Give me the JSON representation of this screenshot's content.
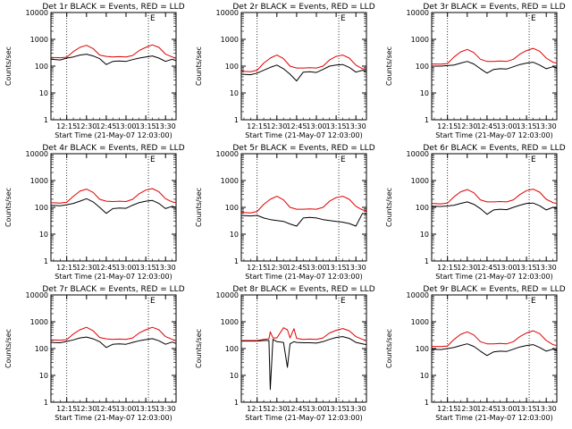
{
  "colors": {
    "events": "#000000",
    "lld": "#e00000",
    "background": "#ffffff",
    "axis": "#000000"
  },
  "chart_data": [
    {
      "type": "line",
      "title": "Det 1r BLACK = Events, RED = LLD",
      "marker": "E",
      "xlabel": "Start Time (21-May-07 12:03:00)",
      "ylabel": "Counts/sec",
      "yscale": "log",
      "xlim": [
        "12:03",
        "13:38"
      ],
      "ylim": [
        1,
        10000
      ],
      "x_ticks": [
        "12:15",
        "12:30",
        "12:45",
        "13:00",
        "13:15",
        "13:30"
      ],
      "y_ticks": [
        "1",
        "10",
        "100",
        "1000",
        "10000"
      ],
      "vlines": [
        "12:15",
        "13:17"
      ],
      "x": [
        "12:03",
        "12:10",
        "12:15",
        "12:20",
        "12:25",
        "12:30",
        "12:35",
        "12:40",
        "12:45",
        "12:50",
        "12:55",
        "13:00",
        "13:05",
        "13:10",
        "13:15",
        "13:20",
        "13:25",
        "13:30",
        "13:35",
        "13:38"
      ],
      "series": [
        {
          "name": "Events",
          "values": [
            180,
            170,
            200,
            220,
            260,
            280,
            240,
            190,
            115,
            150,
            155,
            150,
            175,
            200,
            220,
            240,
            200,
            150,
            180,
            160
          ]
        },
        {
          "name": "LLD",
          "values": [
            210,
            205,
            215,
            350,
            500,
            600,
            450,
            260,
            230,
            220,
            225,
            220,
            250,
            380,
            500,
            620,
            500,
            280,
            220,
            200
          ]
        }
      ]
    },
    {
      "type": "line",
      "title": "Det 2r BLACK = Events, RED = LLD",
      "marker": "E",
      "xlabel": "Start Time (21-May-07 12:03:00)",
      "ylabel": "Counts/sec",
      "yscale": "log",
      "xlim": [
        "12:03",
        "13:38"
      ],
      "ylim": [
        1,
        10000
      ],
      "x_ticks": [
        "12:15",
        "12:30",
        "12:45",
        "13:00",
        "13:15",
        "13:30"
      ],
      "y_ticks": [
        "1",
        "10",
        "100",
        "1000",
        "10000"
      ],
      "vlines": [
        "12:15",
        "13:17"
      ],
      "x": [
        "12:03",
        "12:10",
        "12:15",
        "12:20",
        "12:25",
        "12:30",
        "12:35",
        "12:40",
        "12:45",
        "12:50",
        "12:55",
        "13:00",
        "13:05",
        "13:10",
        "13:15",
        "13:20",
        "13:25",
        "13:30",
        "13:35",
        "13:38"
      ],
      "series": [
        {
          "name": "Events",
          "values": [
            50,
            48,
            55,
            70,
            90,
            110,
            80,
            50,
            28,
            60,
            62,
            58,
            75,
            100,
            110,
            115,
            90,
            60,
            70,
            60
          ]
        },
        {
          "name": "LLD",
          "values": [
            65,
            62,
            70,
            130,
            200,
            260,
            190,
            100,
            85,
            85,
            88,
            85,
            100,
            170,
            230,
            260,
            200,
            110,
            80,
            75
          ]
        }
      ]
    },
    {
      "type": "line",
      "title": "Det 3r BLACK = Events, RED = LLD",
      "marker": "E",
      "xlabel": "Start Time (21-May-07 12:03:00)",
      "ylabel": "Counts/sec",
      "yscale": "log",
      "xlim": [
        "12:03",
        "13:38"
      ],
      "ylim": [
        1,
        10000
      ],
      "x_ticks": [
        "12:15",
        "12:30",
        "12:45",
        "13:00",
        "13:15",
        "13:30"
      ],
      "y_ticks": [
        "1",
        "10",
        "100",
        "1000",
        "10000"
      ],
      "vlines": [
        "12:15",
        "13:17"
      ],
      "x": [
        "12:03",
        "12:10",
        "12:15",
        "12:20",
        "12:25",
        "12:30",
        "12:35",
        "12:40",
        "12:45",
        "12:50",
        "12:55",
        "13:00",
        "13:05",
        "13:10",
        "13:15",
        "13:20",
        "13:25",
        "13:30",
        "13:35",
        "13:38"
      ],
      "series": [
        {
          "name": "Events",
          "values": [
            100,
            100,
            105,
            110,
            130,
            150,
            120,
            80,
            55,
            75,
            80,
            78,
            95,
            115,
            130,
            140,
            110,
            80,
            95,
            85
          ]
        },
        {
          "name": "LLD",
          "values": [
            120,
            118,
            125,
            220,
            340,
            420,
            320,
            180,
            150,
            150,
            155,
            150,
            180,
            280,
            380,
            460,
            360,
            200,
            140,
            130
          ]
        }
      ]
    },
    {
      "type": "line",
      "title": "Det 4r BLACK = Events, RED = LLD",
      "marker": "E",
      "xlabel": "Start Time (21-May-07 12:03:00)",
      "ylabel": "Counts/sec",
      "yscale": "log",
      "xlim": [
        "12:03",
        "13:38"
      ],
      "ylim": [
        1,
        10000
      ],
      "x_ticks": [
        "12:15",
        "12:30",
        "12:45",
        "13:00",
        "13:15",
        "13:30"
      ],
      "y_ticks": [
        "1",
        "10",
        "100",
        "1000",
        "10000"
      ],
      "vlines": [
        "12:15",
        "13:17"
      ],
      "x": [
        "12:03",
        "12:10",
        "12:15",
        "12:20",
        "12:25",
        "12:30",
        "12:35",
        "12:40",
        "12:45",
        "12:50",
        "12:55",
        "13:00",
        "13:05",
        "13:10",
        "13:15",
        "13:20",
        "13:25",
        "13:30",
        "13:35",
        "13:38"
      ],
      "series": [
        {
          "name": "Events",
          "values": [
            120,
            115,
            125,
            140,
            170,
            210,
            160,
            100,
            60,
            90,
            95,
            92,
            120,
            150,
            170,
            180,
            140,
            90,
            110,
            100
          ]
        },
        {
          "name": "LLD",
          "values": [
            150,
            145,
            155,
            260,
            400,
            480,
            360,
            200,
            170,
            165,
            170,
            165,
            200,
            320,
            440,
            500,
            380,
            210,
            160,
            150
          ]
        }
      ]
    },
    {
      "type": "line",
      "title": "Det 5r BLACK = Events, RED = LLD",
      "marker": "E",
      "xlabel": "Start Time (21-May-07 12:03:00)",
      "ylabel": "Counts/sec",
      "yscale": "log",
      "xlim": [
        "12:03",
        "13:38"
      ],
      "ylim": [
        1,
        10000
      ],
      "x_ticks": [
        "12:15",
        "12:30",
        "12:45",
        "13:00",
        "13:15",
        "13:30"
      ],
      "y_ticks": [
        "1",
        "10",
        "100",
        "1000",
        "10000"
      ],
      "vlines": [
        "12:15",
        "13:17"
      ],
      "x": [
        "12:03",
        "12:10",
        "12:15",
        "12:20",
        "12:25",
        "12:30",
        "12:35",
        "12:40",
        "12:45",
        "12:50",
        "12:55",
        "13:00",
        "13:05",
        "13:10",
        "13:15",
        "13:20",
        "13:25",
        "13:30",
        "13:35",
        "13:38"
      ],
      "series": [
        {
          "name": "Events",
          "values": [
            50,
            48,
            50,
            40,
            35,
            32,
            30,
            24,
            20,
            40,
            42,
            40,
            35,
            32,
            30,
            28,
            25,
            20,
            60,
            55
          ]
        },
        {
          "name": "LLD",
          "values": [
            65,
            62,
            70,
            130,
            200,
            260,
            190,
            100,
            85,
            85,
            88,
            85,
            100,
            170,
            230,
            260,
            200,
            110,
            80,
            75
          ]
        }
      ]
    },
    {
      "type": "line",
      "title": "Det 6r BLACK = Events, RED = LLD",
      "marker": "E",
      "xlabel": "Start Time (21-May-07 12:03:00)",
      "ylabel": "Counts/sec",
      "yscale": "log",
      "xlim": [
        "12:03",
        "13:38"
      ],
      "ylim": [
        1,
        10000
      ],
      "x_ticks": [
        "12:15",
        "12:30",
        "12:45",
        "13:00",
        "13:15",
        "13:30"
      ],
      "y_ticks": [
        "1",
        "10",
        "100",
        "1000",
        "10000"
      ],
      "vlines": [
        "12:15",
        "13:17"
      ],
      "x": [
        "12:03",
        "12:10",
        "12:15",
        "12:20",
        "12:25",
        "12:30",
        "12:35",
        "12:40",
        "12:45",
        "12:50",
        "12:55",
        "13:00",
        "13:05",
        "13:10",
        "13:15",
        "13:20",
        "13:25",
        "13:30",
        "13:35",
        "13:38"
      ],
      "series": [
        {
          "name": "Events",
          "values": [
            110,
            108,
            112,
            120,
            140,
            160,
            130,
            90,
            55,
            80,
            85,
            82,
            100,
            120,
            140,
            145,
            115,
            80,
            100,
            90
          ]
        },
        {
          "name": "LLD",
          "values": [
            140,
            135,
            145,
            250,
            380,
            460,
            350,
            190,
            160,
            160,
            165,
            160,
            190,
            300,
            420,
            480,
            370,
            200,
            150,
            140
          ]
        }
      ]
    },
    {
      "type": "line",
      "title": "Det 7r BLACK = Events, RED = LLD",
      "marker": "E",
      "xlabel": "Start Time (21-May-07 12:03:00)",
      "ylabel": "Counts/sec",
      "yscale": "log",
      "xlim": [
        "12:03",
        "13:38"
      ],
      "ylim": [
        1,
        10000
      ],
      "x_ticks": [
        "12:15",
        "12:30",
        "12:45",
        "13:00",
        "13:15",
        "13:30"
      ],
      "y_ticks": [
        "1",
        "10",
        "100",
        "1000",
        "10000"
      ],
      "vlines": [
        "12:15",
        "13:17"
      ],
      "x": [
        "12:03",
        "12:10",
        "12:15",
        "12:20",
        "12:25",
        "12:30",
        "12:35",
        "12:40",
        "12:45",
        "12:50",
        "12:55",
        "13:00",
        "13:05",
        "13:10",
        "13:15",
        "13:20",
        "13:25",
        "13:30",
        "13:35",
        "13:38"
      ],
      "series": [
        {
          "name": "Events",
          "values": [
            170,
            165,
            185,
            210,
            250,
            270,
            230,
            180,
            110,
            145,
            150,
            145,
            170,
            195,
            215,
            235,
            195,
            145,
            175,
            155
          ]
        },
        {
          "name": "LLD",
          "values": [
            210,
            205,
            215,
            350,
            500,
            620,
            460,
            260,
            230,
            220,
            225,
            220,
            250,
            380,
            500,
            620,
            500,
            280,
            220,
            200
          ]
        }
      ]
    },
    {
      "type": "line",
      "title": "Det 8r BLACK = Events, RED = LLD",
      "marker": "E",
      "xlabel": "Start Time (21-May-07 12:03:00)",
      "ylabel": "Counts/sec",
      "yscale": "log",
      "xlim": [
        "12:03",
        "13:38"
      ],
      "ylim": [
        1,
        10000
      ],
      "x_ticks": [
        "12:15",
        "12:30",
        "12:45",
        "13:00",
        "13:15",
        "13:30"
      ],
      "y_ticks": [
        "1",
        "10",
        "100",
        "1000",
        "10000"
      ],
      "vlines": [
        "12:15",
        "13:17"
      ],
      "x": [
        "12:03",
        "12:10",
        "12:15",
        "12:20",
        "12:24",
        "12:25",
        "12:27",
        "12:30",
        "12:35",
        "12:38",
        "12:40",
        "12:43",
        "12:45",
        "12:50",
        "12:55",
        "13:00",
        "13:05",
        "13:10",
        "13:15",
        "13:20",
        "13:25",
        "13:30",
        "13:35",
        "13:38"
      ],
      "series": [
        {
          "name": "Events",
          "values": [
            190,
            190,
            190,
            200,
            200,
            3,
            220,
            180,
            170,
            20,
            150,
            180,
            170,
            165,
            165,
            160,
            180,
            220,
            260,
            280,
            240,
            170,
            150,
            140
          ]
        },
        {
          "name": "LLD",
          "values": [
            200,
            200,
            200,
            220,
            230,
            420,
            250,
            250,
            600,
            500,
            250,
            550,
            240,
            220,
            225,
            220,
            250,
            380,
            480,
            560,
            460,
            280,
            220,
            200
          ]
        }
      ]
    },
    {
      "type": "line",
      "title": "Det 9r BLACK = Events, RED = LLD",
      "marker": "E",
      "xlabel": "Start Time (21-May-07 12:03:00)",
      "ylabel": "Counts/sec",
      "yscale": "log",
      "xlim": [
        "12:03",
        "13:38"
      ],
      "ylim": [
        1,
        10000
      ],
      "x_ticks": [
        "12:15",
        "12:30",
        "12:45",
        "13:00",
        "13:15",
        "13:30"
      ],
      "y_ticks": [
        "1",
        "10",
        "100",
        "1000",
        "10000"
      ],
      "vlines": [
        "12:15",
        "13:17"
      ],
      "x": [
        "12:03",
        "12:10",
        "12:15",
        "12:20",
        "12:25",
        "12:30",
        "12:35",
        "12:40",
        "12:45",
        "12:50",
        "12:55",
        "13:00",
        "13:05",
        "13:10",
        "13:15",
        "13:20",
        "13:25",
        "13:30",
        "13:35",
        "13:38"
      ],
      "series": [
        {
          "name": "Events",
          "values": [
            95,
            92,
            100,
            110,
            130,
            150,
            120,
            80,
            55,
            75,
            80,
            78,
            95,
            115,
            130,
            140,
            110,
            80,
            95,
            85
          ]
        },
        {
          "name": "LLD",
          "values": [
            120,
            118,
            125,
            220,
            340,
            420,
            320,
            180,
            150,
            150,
            155,
            150,
            180,
            280,
            380,
            460,
            360,
            200,
            140,
            130
          ]
        }
      ]
    }
  ]
}
